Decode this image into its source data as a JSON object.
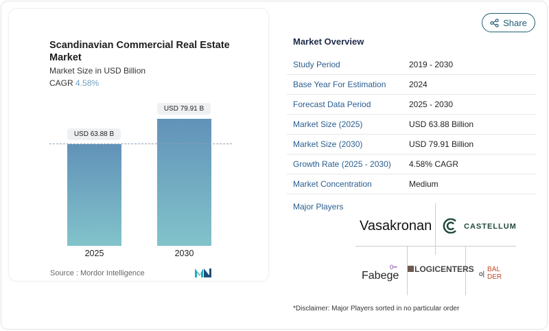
{
  "chart_card": {
    "title": "Scandinavian Commercial Real Estate Market",
    "subtitle": "Market Size in USD Billion",
    "cagr_label": "CAGR",
    "cagr_value": "4.58%",
    "source": "Source :  Mordor Intelligence"
  },
  "chart_data": {
    "type": "bar",
    "categories": [
      "2025",
      "2030"
    ],
    "values": [
      63.88,
      79.91
    ],
    "data_labels": [
      "USD 63.88 B",
      "USD 79.91 B"
    ],
    "title": "Scandinavian Commercial Real Estate Market",
    "ylabel": "Market Size in USD Billion",
    "ylim": [
      0,
      79.91
    ],
    "colors": {
      "bar_top": "#6192b8",
      "bar_bottom": "#82c3cb"
    }
  },
  "share_label": "Share",
  "overview": {
    "title": "Market Overview",
    "rows": [
      {
        "k": "Study Period",
        "v": "2019 - 2030"
      },
      {
        "k": "Base Year For Estimation",
        "v": "2024"
      },
      {
        "k": "Forecast Data Period",
        "v": "2025 - 2030"
      },
      {
        "k": "Market Size (2025)",
        "v": "USD 63.88 Billion"
      },
      {
        "k": "Market Size (2030)",
        "v": "USD 79.91 Billion"
      },
      {
        "k": "Growth Rate (2025 - 2030)",
        "v": "4.58% CAGR"
      },
      {
        "k": "Market Concentration",
        "v": "Medium"
      }
    ]
  },
  "major_players": {
    "label": "Major Players",
    "logos": [
      "Vasakronan",
      "CASTELLUM",
      "Fabege",
      "LOGICENTERS",
      "BAL",
      "DER"
    ]
  },
  "disclaimer": "*Disclaimer: Major Players sorted in no particular order"
}
